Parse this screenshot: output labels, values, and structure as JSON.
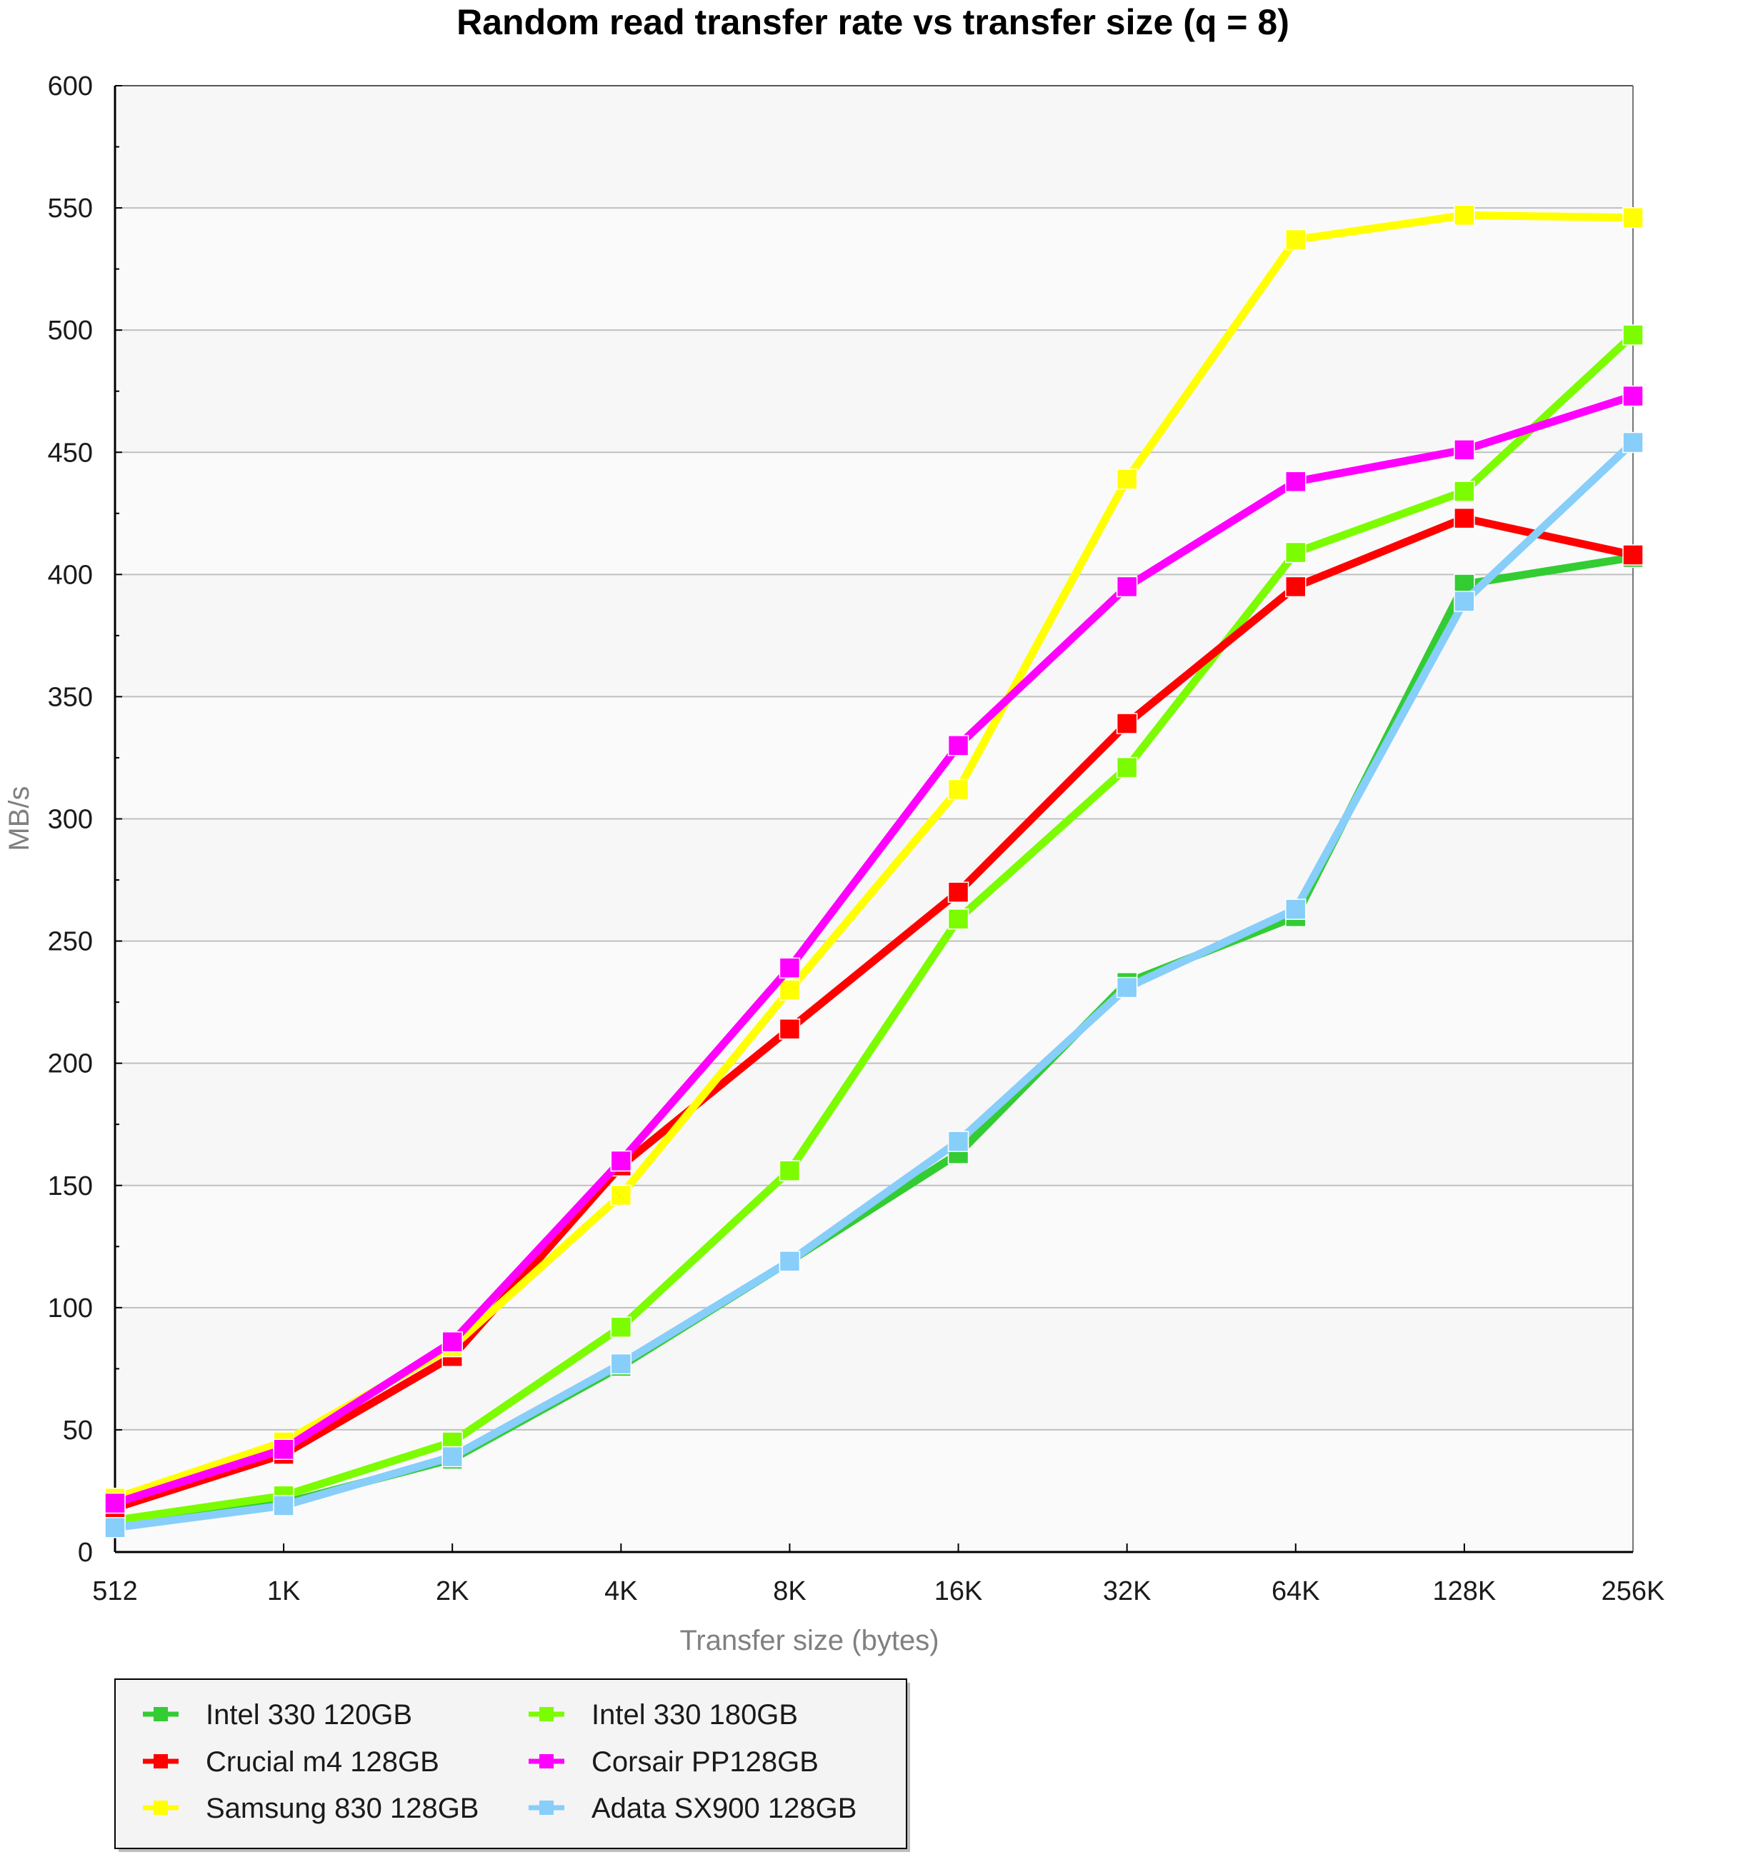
{
  "chart_data": {
    "type": "line",
    "title": "Random read transfer rate vs transfer size (q = 8)",
    "xlabel": "Transfer size (bytes)",
    "ylabel": "MB/s",
    "ylim": [
      0,
      600
    ],
    "yticks": [
      0,
      50,
      100,
      150,
      200,
      250,
      300,
      350,
      400,
      450,
      500,
      550,
      600
    ],
    "categories": [
      "512",
      "1K",
      "2K",
      "4K",
      "8K",
      "16K",
      "32K",
      "64K",
      "128K",
      "256K"
    ],
    "grid": true,
    "legend_position": "bottom-left",
    "series": [
      {
        "name": "Intel 330 120GB",
        "color": "#33cc33",
        "values": [
          11,
          20,
          38,
          76,
          119,
          163,
          233,
          260,
          396,
          407
        ]
      },
      {
        "name": "Crucial m4 128GB",
        "color": "#ff0000",
        "values": [
          18,
          40,
          80,
          158,
          214,
          270,
          339,
          395,
          423,
          408
        ]
      },
      {
        "name": "Samsung 830 128GB",
        "color": "#ffff00",
        "values": [
          22,
          45,
          84,
          146,
          230,
          312,
          439,
          537,
          547,
          546
        ]
      },
      {
        "name": "Intel 330 180GB",
        "color": "#7cfc00",
        "values": [
          13,
          23,
          45,
          92,
          156,
          259,
          321,
          409,
          434,
          498
        ]
      },
      {
        "name": "Corsair PP128GB",
        "color": "#ff00ff",
        "values": [
          20,
          42,
          86,
          160,
          239,
          330,
          395,
          438,
          451,
          473
        ]
      },
      {
        "name": "Adata SX900 128GB",
        "color": "#87cefa",
        "values": [
          10,
          19,
          39,
          77,
          119,
          168,
          231,
          263,
          389,
          454
        ]
      }
    ],
    "draw_order": [
      0,
      3,
      1,
      2,
      4,
      5
    ]
  }
}
